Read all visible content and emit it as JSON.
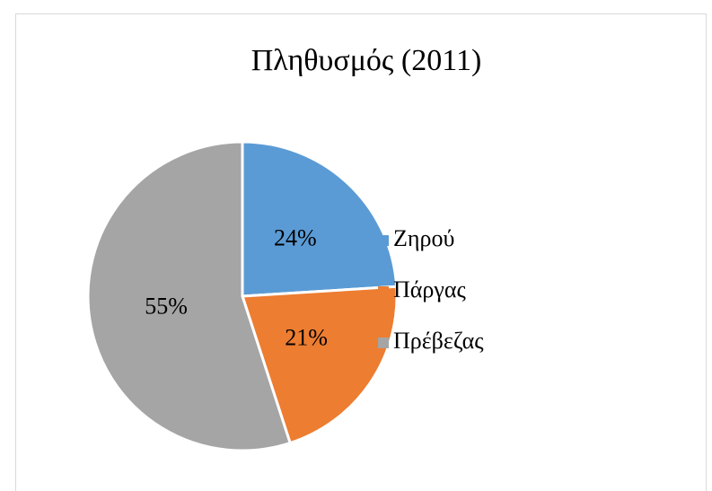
{
  "chart_data": {
    "type": "pie",
    "title": "Πληθυσμός (2011)",
    "categories": [
      "Ζηρού",
      "Πάργας",
      "Πρέβεζας"
    ],
    "values": [
      24,
      21,
      55
    ],
    "value_labels": [
      "24%",
      "21%",
      "55%"
    ],
    "colors": [
      "#5b9bd5",
      "#ed7d31",
      "#a5a5a5"
    ],
    "legend": "right"
  }
}
